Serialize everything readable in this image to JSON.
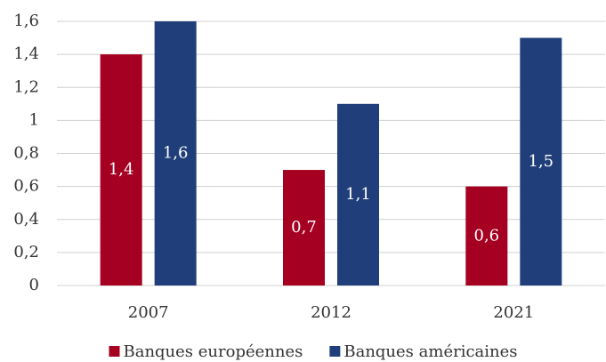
{
  "chart_data": {
    "type": "bar",
    "categories": [
      "2007",
      "2012",
      "2021"
    ],
    "series": [
      {
        "name": "Banques européennes",
        "color": "#a50021",
        "values": [
          1.4,
          0.7,
          0.6
        ],
        "value_labels": [
          "1,4",
          "0,7",
          "0,6"
        ]
      },
      {
        "name": "Banques américaines",
        "color": "#203f7a",
        "values": [
          1.6,
          1.1,
          1.5
        ],
        "value_labels": [
          "1,6",
          "1,1",
          "1,5"
        ]
      }
    ],
    "ylim": [
      0,
      1.6
    ],
    "yticks": [
      0,
      {
        "value": 0.2,
        "label": "0,2"
      },
      {
        "value": 0.4,
        "label": "0,4"
      },
      {
        "value": 0.6,
        "label": "0,6"
      },
      {
        "value": 0.8,
        "label": "0,8"
      },
      1,
      {
        "value": 1.2,
        "label": "1,2"
      },
      {
        "value": 1.4,
        "label": "1,4"
      },
      {
        "value": 1.6,
        "label": "1,6"
      }
    ],
    "grid": true,
    "legend": "bottom"
  }
}
